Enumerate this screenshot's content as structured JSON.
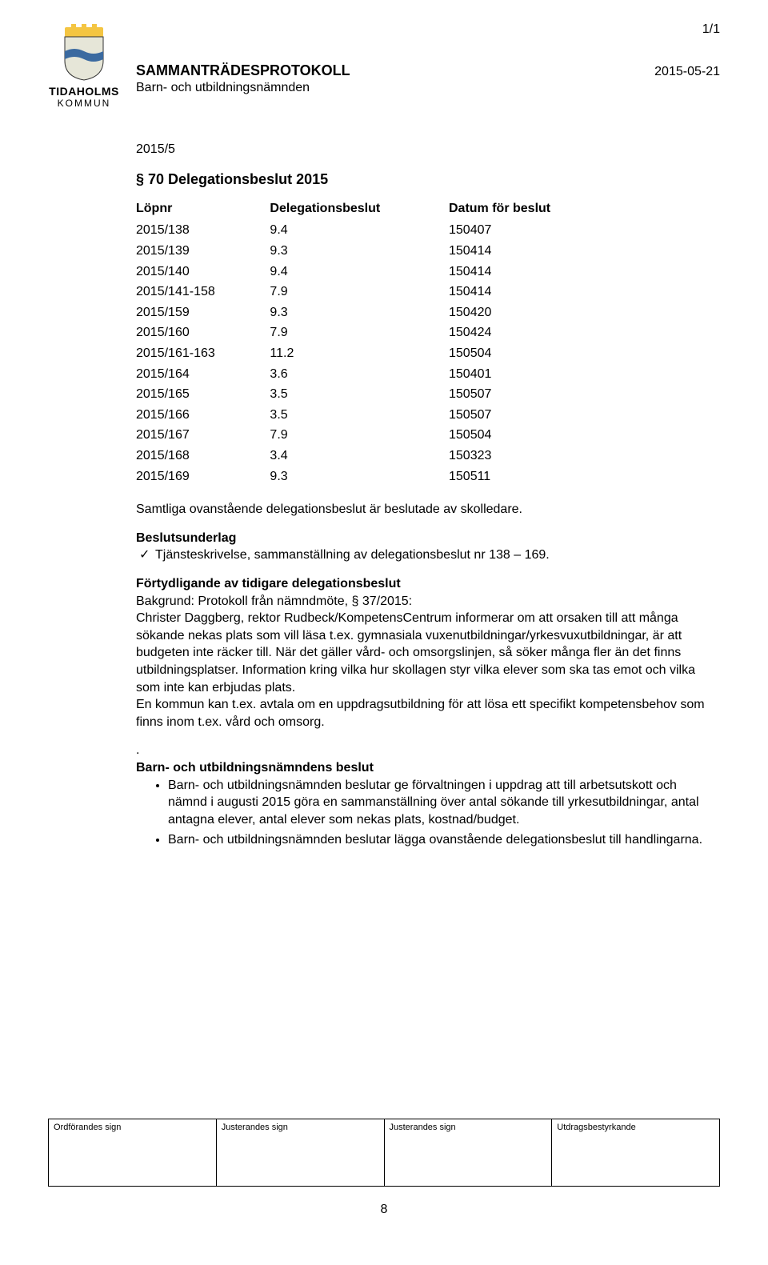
{
  "page_corner": "1/1",
  "org": {
    "name1": "TIDAHOLMS",
    "name2": "KOMMUN"
  },
  "logo": {
    "shield_fill": "#e6e6d8",
    "shield_stroke": "#333333",
    "top_fill": "#f4c542",
    "stripe_fill": "#3b6aa0"
  },
  "header": {
    "title": "SAMMANTRÄDESPROTOKOLL",
    "date": "2015-05-21",
    "subtitle": "Barn- och utbildningsnämnden"
  },
  "case_no": "2015/5",
  "section_title": "§ 70 Delegationsbeslut 2015",
  "table": {
    "headers": {
      "c1": "Löpnr",
      "c2": "Delegationsbeslut",
      "c3": "Datum för beslut"
    },
    "rows": [
      {
        "c1": "2015/138",
        "c2": "9.4",
        "c3": "150407"
      },
      {
        "c1": "2015/139",
        "c2": "9.3",
        "c3": "150414"
      },
      {
        "c1": "2015/140",
        "c2": "9.4",
        "c3": "150414"
      },
      {
        "c1": "2015/141-158",
        "c2": "7.9",
        "c3": "150414"
      },
      {
        "c1": "2015/159",
        "c2": "9.3",
        "c3": "150420"
      },
      {
        "c1": "2015/160",
        "c2": "7.9",
        "c3": "150424"
      },
      {
        "c1": "2015/161-163",
        "c2": "11.2",
        "c3": "150504"
      },
      {
        "c1": "2015/164",
        "c2": "3.6",
        "c3": "150401"
      },
      {
        "c1": "2015/165",
        "c2": "3.5",
        "c3": "150507"
      },
      {
        "c1": "2015/166",
        "c2": "3.5",
        "c3": "150507"
      },
      {
        "c1": "2015/167",
        "c2": "7.9",
        "c3": "150504"
      },
      {
        "c1": "2015/168",
        "c2": "3.4",
        "c3": "150323"
      },
      {
        "c1": "2015/169",
        "c2": "9.3",
        "c3": "150511"
      }
    ]
  },
  "para_after_table": "Samtliga ovanstående delegationsbeslut är beslutade av skolledare.",
  "beslutsunderlag": {
    "heading": "Beslutsunderlag",
    "item": "Tjänsteskrivelse, sammanställning av delegationsbeslut nr 138 – 169."
  },
  "fortydligande": {
    "heading": "Förtydligande av tidigare delegationsbeslut",
    "body": "Bakgrund: Protokoll från nämndmöte, § 37/2015:\nChrister Daggberg, rektor Rudbeck/KompetensCentrum informerar om att orsaken till att många sökande nekas plats som vill läsa t.ex. gymnasiala vuxenutbildningar/yrkesvuxutbildningar, är att budgeten inte räcker till. När det gäller vård- och omsorgslinjen, så söker många fler än det finns utbildningsplatser. Information kring vilka hur skollagen styr vilka elever som ska tas emot och vilka som inte kan erbjudas plats.\nEn kommun kan t.ex. avtala om en uppdragsutbildning för att lösa ett specifikt kompetensbehov som finns inom t.ex. vård och omsorg."
  },
  "dot": ".",
  "beslut": {
    "heading": "Barn- och utbildningsnämndens beslut",
    "items": [
      "Barn- och utbildningsnämnden beslutar ge förvaltningen i uppdrag att till arbetsutskott och nämnd i augusti 2015 göra en sammanställning över antal sökande till yrkesutbildningar, antal antagna elever, antal elever som nekas plats, kostnad/budget.",
      "Barn- och utbildningsnämnden beslutar lägga ovanstående delegationsbeslut till handlingarna."
    ]
  },
  "footer": {
    "cells": [
      "Ordförandes sign",
      "Justerandes sign",
      "Justerandes sign",
      "Utdragsbestyrkande"
    ],
    "page_num": "8"
  }
}
